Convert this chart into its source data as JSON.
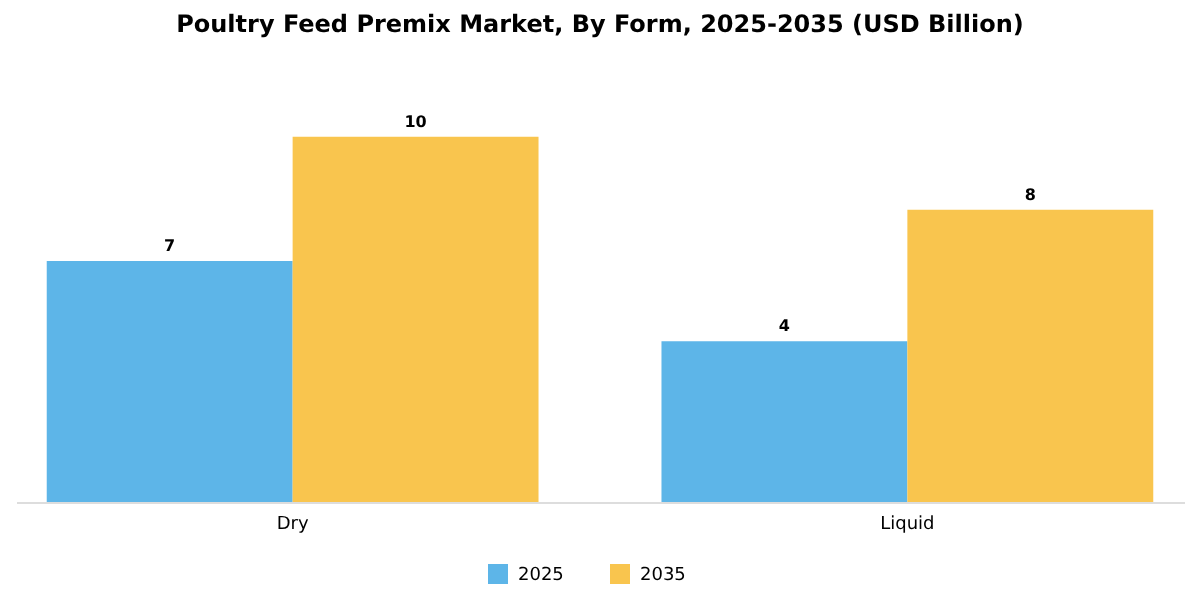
{
  "chart_data": {
    "type": "bar",
    "title": "Poultry Feed Premix Market, By Form, 2025-2035 (USD Billion)",
    "categories": [
      "Dry",
      "Liquid"
    ],
    "series": [
      {
        "name": "2025",
        "color": "#5db5e8",
        "values": [
          6.6,
          4.4
        ],
        "value_labels": [
          "7",
          "4"
        ]
      },
      {
        "name": "2035",
        "color": "#f9c54e",
        "values": [
          10,
          8
        ],
        "value_labels": [
          "10",
          "8"
        ]
      }
    ],
    "legend": "bottom",
    "grid": false
  }
}
